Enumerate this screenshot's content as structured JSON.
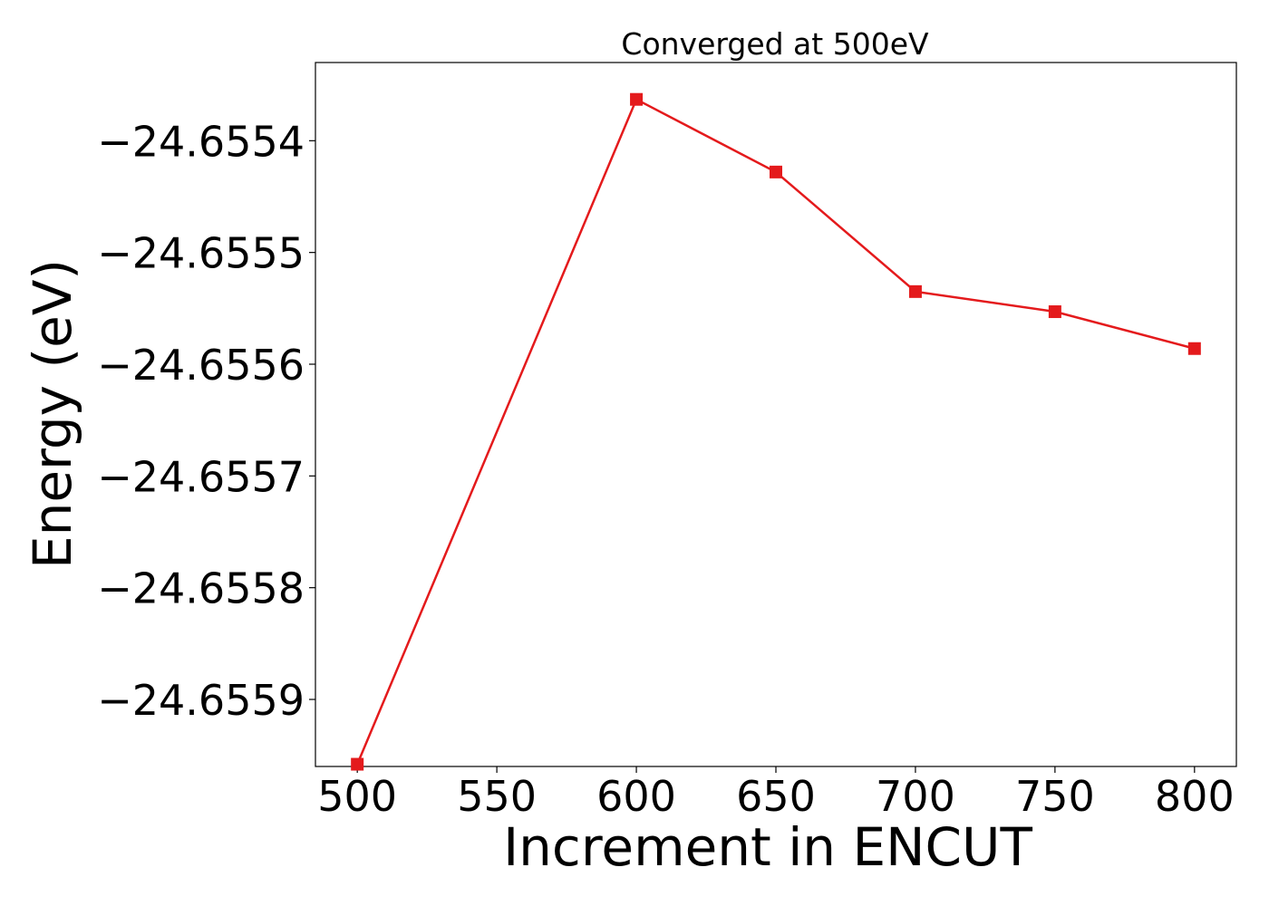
{
  "chart_data": {
    "type": "line",
    "title": "Converged at 500eV",
    "xlabel": "Increment in ENCUT",
    "ylabel": "Energy (eV)",
    "xlim": [
      485,
      815
    ],
    "ylim": [
      -24.65596,
      -24.65533
    ],
    "x_ticks": [
      500,
      550,
      600,
      650,
      700,
      750,
      800
    ],
    "x_tick_labels": [
      "500",
      "550",
      "600",
      "650",
      "700",
      "750",
      "800"
    ],
    "y_ticks": [
      -24.6554,
      -24.6555,
      -24.6556,
      -24.6557,
      -24.6558,
      -24.6559
    ],
    "y_tick_labels": [
      "−24.6554",
      "−24.6555",
      "−24.6556",
      "−24.6557",
      "−24.6558",
      "−24.6559"
    ],
    "grid": false,
    "series": [
      {
        "color": "#e41a1c",
        "marker": "square",
        "x": [
          500,
          600,
          650,
          700,
          750,
          800
        ],
        "y": [
          -24.655958,
          -24.655363,
          -24.655428,
          -24.655535,
          -24.655553,
          -24.655586
        ]
      }
    ]
  }
}
